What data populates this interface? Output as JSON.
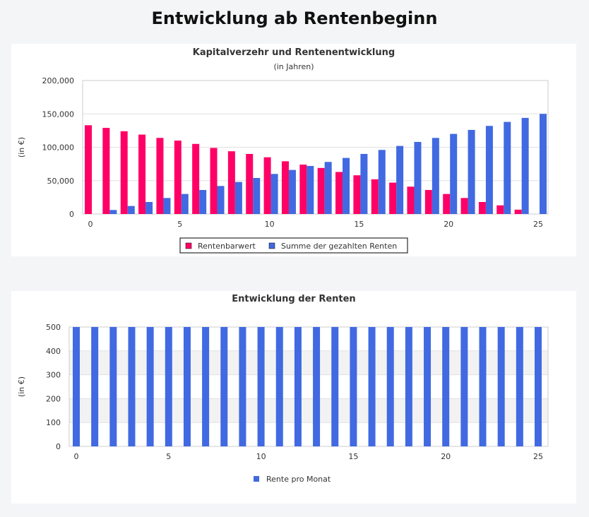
{
  "page_title": "Entwicklung ab Rentenbeginn",
  "chart_data": [
    {
      "type": "bar",
      "title": "Kapitalverzehr und Rentenentwicklung",
      "subtitle": "(in Jahren)",
      "ylabel": "(in €)",
      "xlabel": "",
      "x": [
        0,
        1,
        2,
        3,
        4,
        5,
        6,
        7,
        8,
        9,
        10,
        11,
        12,
        13,
        14,
        15,
        16,
        17,
        18,
        19,
        20,
        21,
        22,
        23,
        24,
        25
      ],
      "xticks": [
        "0",
        "5",
        "10",
        "15",
        "20",
        "25"
      ],
      "yticks": [
        "0",
        "50,000",
        "100,000",
        "150,000",
        "200,000"
      ],
      "ylim": [
        0,
        200000
      ],
      "grid": true,
      "legend_position": "bottom",
      "series": [
        {
          "name": "Rentenbarwert",
          "color": "#ff0066",
          "values": [
            133000,
            129000,
            124000,
            119000,
            114000,
            110000,
            105000,
            99000,
            94000,
            90000,
            85000,
            79000,
            74000,
            69000,
            63000,
            58000,
            52000,
            47000,
            41000,
            36000,
            30000,
            24000,
            18000,
            13000,
            6500,
            0
          ]
        },
        {
          "name": "Summe der gezahlten Renten",
          "color": "#4169e1",
          "values": [
            0,
            6000,
            12000,
            18000,
            24000,
            30000,
            36000,
            42000,
            48000,
            54000,
            60000,
            66000,
            72000,
            78000,
            84000,
            90000,
            96000,
            102000,
            108000,
            114000,
            120000,
            126000,
            132000,
            138000,
            144000,
            150000
          ]
        }
      ]
    },
    {
      "type": "bar",
      "title": "Entwicklung der Renten",
      "ylabel": "(in €)",
      "xlabel": "",
      "x": [
        0,
        1,
        2,
        3,
        4,
        5,
        6,
        7,
        8,
        9,
        10,
        11,
        12,
        13,
        14,
        15,
        16,
        17,
        18,
        19,
        20,
        21,
        22,
        23,
        24,
        25
      ],
      "xticks": [
        "0",
        "5",
        "10",
        "15",
        "20",
        "25"
      ],
      "yticks": [
        "0",
        "100",
        "200",
        "300",
        "400",
        "500"
      ],
      "ylim": [
        0,
        500
      ],
      "grid": true,
      "legend_position": "bottom",
      "series": [
        {
          "name": "Rente pro Monat",
          "color": "#4169e1",
          "values": [
            500,
            500,
            500,
            500,
            500,
            500,
            500,
            500,
            500,
            500,
            500,
            500,
            500,
            500,
            500,
            500,
            500,
            500,
            500,
            500,
            500,
            500,
            500,
            500,
            500,
            500
          ]
        }
      ]
    }
  ]
}
